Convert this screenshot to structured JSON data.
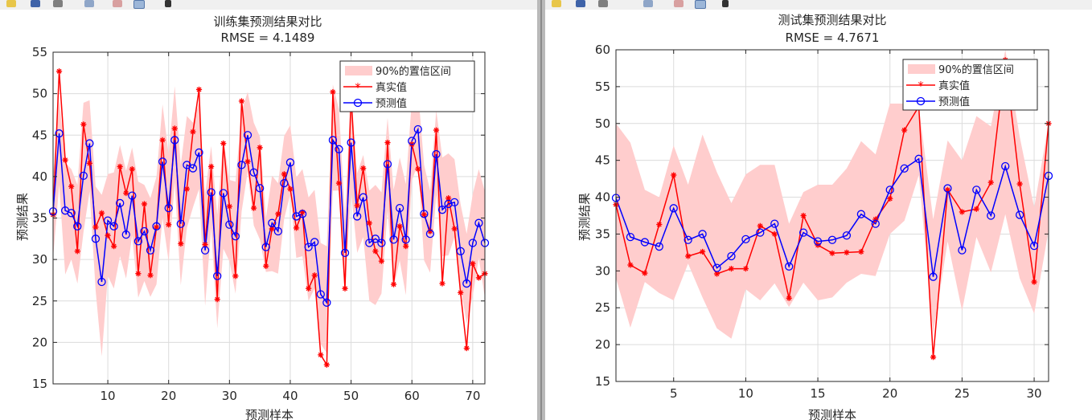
{
  "colors": {
    "band": "#ffcdcd",
    "actual": "#ff0000",
    "predicted": "#0000ff",
    "grid": "#dcdcdc",
    "axis": "#262626"
  },
  "toolbar_icons": [
    "folder-icon",
    "save-icon",
    "print-icon",
    "zoom-icon",
    "data-cursor-icon",
    "pan-icon",
    "pointer-icon"
  ],
  "legend": {
    "band": "90%的置信区间",
    "actual": "真实值",
    "predicted": "预测值"
  },
  "chart_data": [
    {
      "type": "line",
      "title": "训练集预测结果对比",
      "subtitle": "RMSE = 4.1489",
      "xlabel": "预测样本",
      "ylabel": "预测结果",
      "xlim": [
        1,
        72
      ],
      "ylim": [
        15,
        55
      ],
      "xticks": [
        10,
        20,
        30,
        40,
        50,
        60,
        70
      ],
      "yticks": [
        15,
        20,
        25,
        30,
        35,
        40,
        45,
        50,
        55
      ],
      "grid": true,
      "legend_position": "top-right",
      "x": [
        1,
        2,
        3,
        4,
        5,
        6,
        7,
        8,
        9,
        10,
        11,
        12,
        13,
        14,
        15,
        16,
        17,
        18,
        19,
        20,
        21,
        22,
        23,
        24,
        25,
        26,
        27,
        28,
        29,
        30,
        31,
        32,
        33,
        34,
        35,
        36,
        37,
        38,
        39,
        40,
        41,
        42,
        43,
        44,
        45,
        46,
        47,
        48,
        49,
        50,
        51,
        52,
        53,
        54,
        55,
        56,
        57,
        58,
        59,
        60,
        61,
        62,
        63,
        64,
        65,
        66,
        67,
        68,
        69,
        70,
        71,
        72
      ],
      "series": [
        {
          "name": "真实值",
          "values": [
            35.4,
            52.7,
            42.0,
            38.8,
            31.0,
            46.3,
            41.6,
            33.9,
            35.6,
            32.9,
            31.6,
            41.2,
            38.0,
            40.9,
            28.3,
            36.7,
            28.1,
            33.9,
            44.4,
            34.2,
            45.8,
            31.9,
            38.5,
            45.4,
            50.5,
            31.8,
            41.2,
            25.2,
            44.0,
            36.4,
            28.0,
            49.1,
            41.8,
            36.2,
            43.5,
            29.2,
            33.7,
            35.5,
            40.3,
            38.5,
            33.8,
            35.7,
            26.5,
            28.1,
            18.5,
            17.3,
            50.2,
            39.2,
            26.5,
            49.8,
            36.5,
            41.0,
            34.4,
            31.0,
            29.8,
            44.1,
            27.0,
            34.0,
            31.6,
            43.9,
            40.9,
            35.4,
            33.4,
            45.6,
            27.1,
            37.4,
            33.7,
            26.0,
            19.3,
            29.5,
            27.8,
            28.3
          ]
        },
        {
          "name": "预测值",
          "values": [
            35.8,
            45.2,
            35.9,
            35.6,
            34.0,
            40.1,
            44.0,
            32.5,
            27.3,
            34.7,
            34.0,
            36.8,
            33.0,
            37.7,
            32.2,
            33.4,
            31.1,
            34.0,
            41.8,
            36.2,
            44.4,
            34.3,
            41.4,
            41.0,
            42.9,
            31.1,
            38.1,
            28.0,
            38.0,
            34.2,
            32.8,
            41.4,
            45.0,
            40.5,
            38.6,
            31.5,
            34.4,
            33.4,
            39.2,
            41.7,
            35.2,
            35.5,
            31.5,
            32.1,
            25.8,
            24.8,
            44.4,
            43.3,
            30.8,
            44.1,
            35.2,
            37.5,
            32.0,
            32.5,
            32.0,
            41.5,
            32.4,
            36.2,
            32.4,
            44.3,
            45.7,
            35.5,
            33.1,
            42.7,
            36.0,
            36.7,
            36.9,
            31.0,
            27.1,
            32.0,
            34.4,
            32.0
          ]
        },
        {
          "name": "90%的置信区间",
          "lower": [
            30.2,
            39.0,
            28.2,
            30.0,
            27.1,
            33.3,
            38.2,
            26.3,
            18.3,
            28.0,
            26.5,
            30.4,
            27.7,
            32.9,
            25.4,
            27.4,
            25.5,
            27.0,
            35.0,
            29.8,
            39.3,
            26.9,
            33.8,
            36.3,
            38.5,
            24.4,
            33.8,
            21.7,
            31.3,
            29.8,
            25.9,
            35.8,
            40.6,
            34.1,
            32.4,
            28.5,
            28.6,
            28.3,
            34.9,
            37.9,
            30.2,
            30.4,
            25.0,
            26.5,
            19.8,
            18.7,
            38.3,
            38.3,
            26.1,
            38.2,
            30.8,
            32.7,
            25.0,
            24.5,
            25.9,
            35.9,
            26.7,
            29.9,
            25.7,
            39.5,
            41.6,
            29.9,
            28.4,
            37.8,
            30.4,
            30.5,
            32.7,
            26.6,
            22.3,
            25.6,
            30.2,
            25.4
          ],
          "upper": [
            40.1,
            49.4,
            41.7,
            40.9,
            39.0,
            48.9,
            49.2,
            38.8,
            37.8,
            40.3,
            40.5,
            43.8,
            40.7,
            43.5,
            39.4,
            39.0,
            37.4,
            40.0,
            48.7,
            42.7,
            50.9,
            41.4,
            47.3,
            46.5,
            48.9,
            37.9,
            43.7,
            35.4,
            44.5,
            39.6,
            39.4,
            47.9,
            50.2,
            46.5,
            44.8,
            35.0,
            40.1,
            39.2,
            44.9,
            46.2,
            39.9,
            40.9,
            37.5,
            38.4,
            32.0,
            31.6,
            51.1,
            48.1,
            35.4,
            50.4,
            40.4,
            42.6,
            38.3,
            39.0,
            38.1,
            47.1,
            38.4,
            42.3,
            39.1,
            49.3,
            50.5,
            41.4,
            38.3,
            48.0,
            42.3,
            42.8,
            42.1,
            36.7,
            33.1,
            37.9,
            40.9,
            38.2
          ]
        }
      ]
    },
    {
      "type": "line",
      "title": "测试集预测结果对比",
      "subtitle": "RMSE = 4.7671",
      "xlabel": "预测样本",
      "ylabel": "预测结果",
      "xlim": [
        1,
        31
      ],
      "ylim": [
        15,
        60
      ],
      "xticks": [
        5,
        10,
        15,
        20,
        25,
        30
      ],
      "yticks": [
        15,
        20,
        25,
        30,
        35,
        40,
        45,
        50,
        55,
        60
      ],
      "grid": true,
      "legend_position": "top-right",
      "x": [
        1,
        2,
        3,
        4,
        5,
        6,
        7,
        8,
        9,
        10,
        11,
        12,
        13,
        14,
        15,
        16,
        17,
        18,
        19,
        20,
        21,
        22,
        23,
        24,
        25,
        26,
        27,
        28,
        29,
        30,
        31
      ],
      "series": [
        {
          "name": "真实值",
          "values": [
            39.0,
            30.8,
            29.7,
            36.3,
            43.0,
            32.0,
            32.6,
            29.6,
            30.3,
            30.3,
            36.1,
            35.0,
            26.3,
            37.5,
            33.5,
            32.4,
            32.5,
            32.6,
            37.0,
            39.8,
            49.1,
            52.3,
            18.3,
            41.0,
            38.0,
            38.4,
            42.0,
            58.6,
            41.8,
            28.5,
            50.0
          ]
        },
        {
          "name": "预测值",
          "values": [
            39.9,
            34.6,
            33.9,
            33.3,
            38.5,
            34.2,
            35.0,
            30.4,
            32.0,
            34.3,
            35.2,
            36.4,
            30.6,
            35.2,
            34.0,
            34.2,
            34.8,
            37.7,
            36.4,
            41.0,
            43.9,
            45.2,
            29.2,
            41.2,
            32.8,
            41.0,
            37.5,
            44.2,
            37.6,
            33.4,
            42.9
          ]
        },
        {
          "name": "90%的置信区间",
          "lower": [
            29.0,
            22.3,
            28.5,
            27.0,
            26.0,
            31.0,
            26.4,
            22.2,
            20.8,
            27.5,
            26.0,
            28.3,
            25.1,
            28.4,
            26.0,
            26.4,
            28.4,
            29.6,
            29.3,
            35.0,
            36.8,
            43.0,
            21.5,
            34.0,
            24.6,
            34.6,
            29.8,
            37.7,
            29.0,
            24.2,
            35.5
          ],
          "upper": [
            50.0,
            47.4,
            41.0,
            40.0,
            47.0,
            41.7,
            48.5,
            43.4,
            39.2,
            43.1,
            44.4,
            44.4,
            36.4,
            40.7,
            41.7,
            41.7,
            43.9,
            47.6,
            45.8,
            52.7,
            52.7,
            52.3,
            37.0,
            47.7,
            45.0,
            51.0,
            49.6,
            60.0,
            48.2,
            38.6,
            50.0
          ]
        }
      ]
    }
  ]
}
